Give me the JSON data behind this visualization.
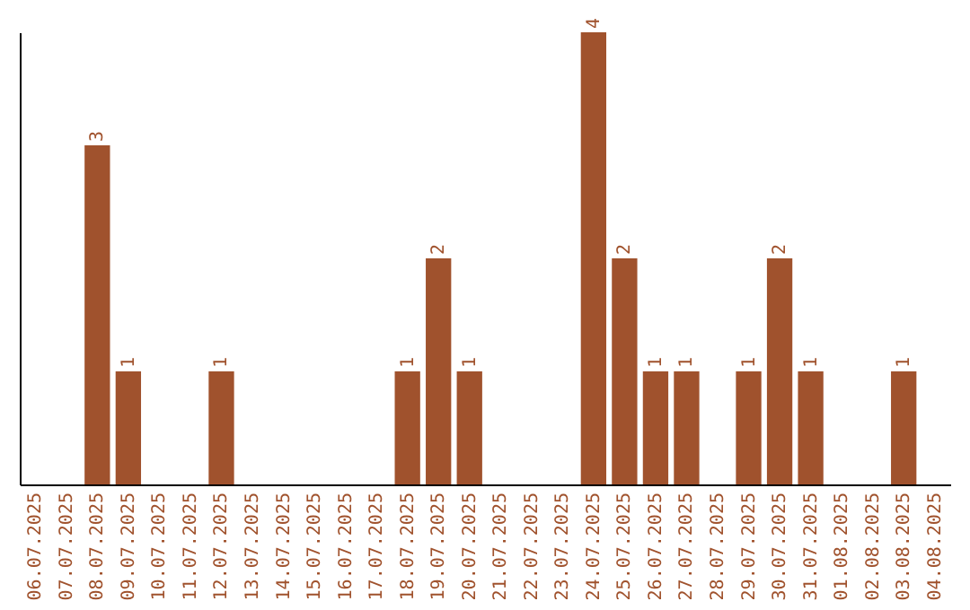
{
  "chart_data": {
    "type": "bar",
    "categories": [
      "06.07.2025",
      "07.07.2025",
      "08.07.2025",
      "09.07.2025",
      "10.07.2025",
      "11.07.2025",
      "12.07.2025",
      "13.07.2025",
      "14.07.2025",
      "15.07.2025",
      "16.07.2025",
      "17.07.2025",
      "18.07.2025",
      "19.07.2025",
      "20.07.2025",
      "21.07.2025",
      "22.07.2025",
      "23.07.2025",
      "24.07.2025",
      "25.07.2025",
      "26.07.2025",
      "27.07.2025",
      "28.07.2025",
      "29.07.2025",
      "30.07.2025",
      "31.07.2025",
      "01.08.2025",
      "02.08.2025",
      "03.08.2025",
      "04.08.2025"
    ],
    "values": [
      null,
      null,
      3,
      1,
      null,
      null,
      1,
      null,
      null,
      null,
      null,
      null,
      1,
      2,
      1,
      null,
      null,
      null,
      4,
      2,
      1,
      1,
      null,
      1,
      2,
      1,
      null,
      null,
      1,
      null
    ],
    "color": "#a0522d",
    "data_labels": true,
    "tick_labels": "x"
  }
}
